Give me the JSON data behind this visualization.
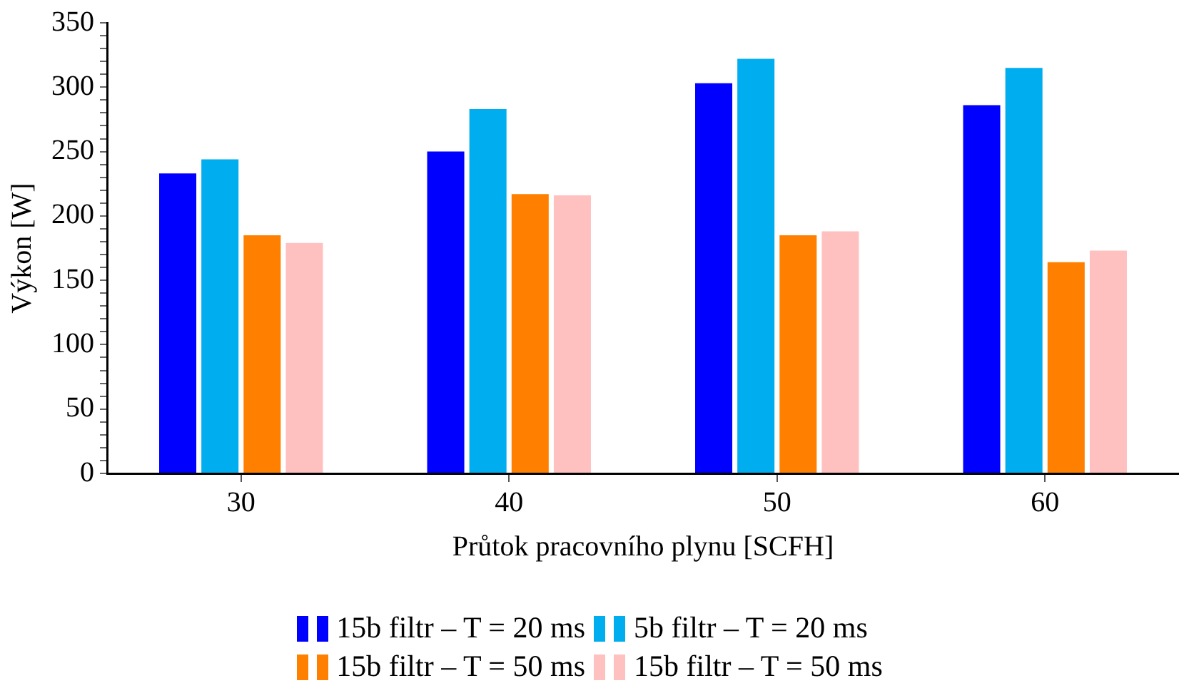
{
  "chart_data": {
    "type": "bar",
    "xlabel": "Průtok pracovního plynu [SCFH]",
    "ylabel": "Výkon [W]",
    "categories": [
      "30",
      "40",
      "50",
      "60"
    ],
    "series": [
      {
        "name": "15b filtr – T = 20 ms",
        "color": "#0000ff",
        "values": [
          233,
          250,
          303,
          286
        ]
      },
      {
        "name": "5b filtr – T = 20 ms",
        "color": "#00aeef",
        "values": [
          244,
          283,
          322,
          315
        ]
      },
      {
        "name": "15b filtr – T = 50 ms",
        "color": "#ff8000",
        "values": [
          185,
          217,
          185,
          164
        ]
      },
      {
        "name": "15b filtr – T = 50 ms",
        "color": "#ffc0c0",
        "values": [
          179,
          216,
          188,
          173
        ]
      }
    ],
    "ylim": [
      0,
      350
    ],
    "yticks": [
      0,
      {
        "value": 10,
        "label": null
      },
      {
        "value": 20,
        "label": null
      },
      {
        "value": 30,
        "label": null
      },
      {
        "value": 40,
        "label": null
      },
      50,
      {
        "value": 60,
        "label": null
      },
      {
        "value": 70,
        "label": null
      },
      {
        "value": 80,
        "label": null
      },
      {
        "value": 90,
        "label": null
      },
      100,
      {
        "value": 110,
        "label": null
      },
      {
        "value": 120,
        "label": null
      },
      {
        "value": 130,
        "label": null
      },
      {
        "value": 140,
        "label": null
      },
      150,
      {
        "value": 160,
        "label": null
      },
      {
        "value": 170,
        "label": null
      },
      {
        "value": 180,
        "label": null
      },
      {
        "value": 190,
        "label": null
      },
      200,
      {
        "value": 210,
        "label": null
      },
      {
        "value": 220,
        "label": null
      },
      {
        "value": 230,
        "label": null
      },
      {
        "value": 240,
        "label": null
      },
      250,
      {
        "value": 260,
        "label": null
      },
      {
        "value": 270,
        "label": null
      },
      {
        "value": 280,
        "label": null
      },
      {
        "value": 290,
        "label": null
      },
      300,
      {
        "value": 310,
        "label": null
      },
      {
        "value": 320,
        "label": null
      },
      {
        "value": 330,
        "label": null
      },
      {
        "value": 340,
        "label": null
      },
      350
    ],
    "grid": false,
    "legend": "bottom"
  }
}
